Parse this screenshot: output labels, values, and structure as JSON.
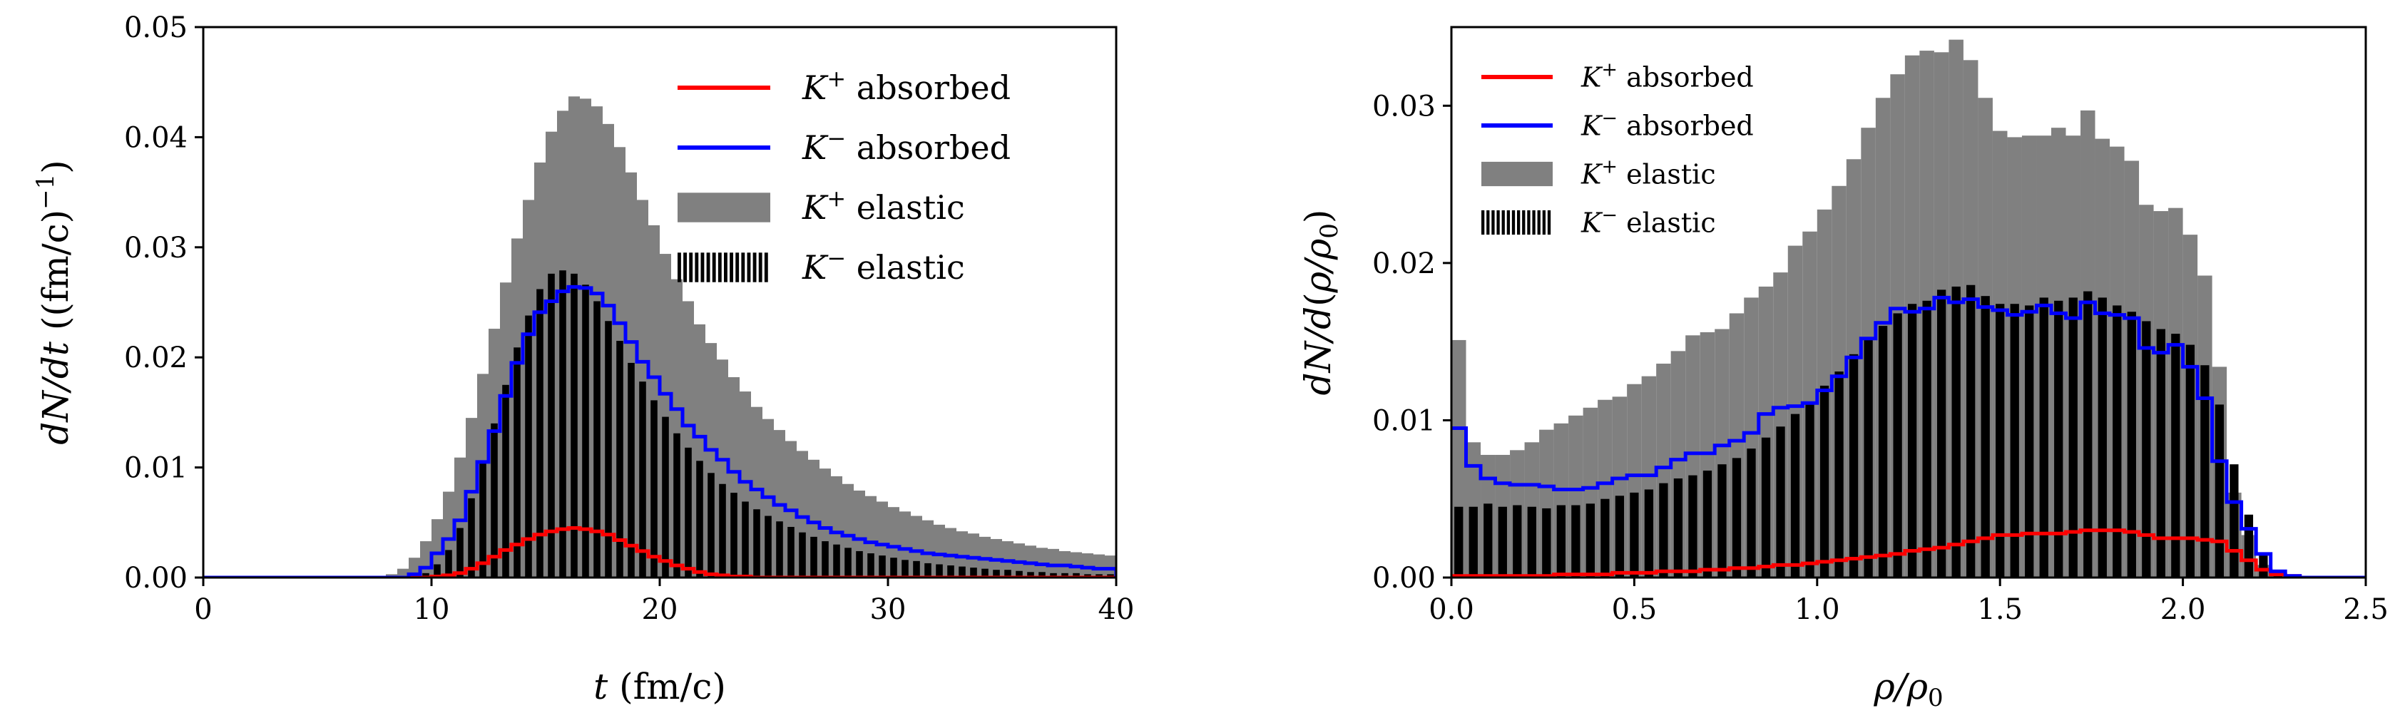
{
  "chart_data": [
    {
      "type": "histogram",
      "xlabel": "t (fm/c)",
      "ylabel": "dN/dt ((fm/c)^-1)",
      "xlim": [
        0,
        40
      ],
      "ylim": [
        0,
        0.05
      ],
      "xticks": [
        "0",
        "10",
        "20",
        "30",
        "40"
      ],
      "yticks": [
        "0.00",
        "0.01",
        "0.02",
        "0.03",
        "0.04",
        "0.05"
      ],
      "legend_position": "top-right",
      "bin_width": 0.5,
      "bin_start": 0,
      "series": [
        {
          "name": "K+ absorbed",
          "label": "K+ absorbed",
          "style": "step",
          "color": "#ff0000",
          "values": [
            0,
            0,
            0,
            0,
            0,
            0,
            0,
            0,
            0,
            0,
            0,
            0,
            0,
            0,
            0,
            0,
            0,
            0,
            0,
            0,
            0.0001,
            0.0002,
            0.0004,
            0.0008,
            0.0013,
            0.0019,
            0.0025,
            0.003,
            0.0035,
            0.0039,
            0.0042,
            0.0044,
            0.0045,
            0.0044,
            0.0042,
            0.0039,
            0.0034,
            0.0029,
            0.0024,
            0.0019,
            0.0015,
            0.0011,
            0.0008,
            0.0005,
            0.0003,
            0.0002,
            0.0001,
            0.0001
          ]
        },
        {
          "name": "K- absorbed",
          "label": "K− absorbed",
          "style": "step",
          "color": "#0000ff",
          "values": [
            0,
            0,
            0,
            0,
            0,
            0,
            0,
            0,
            0,
            0,
            0,
            0,
            0,
            0,
            0,
            0,
            0,
            0,
            0.0003,
            0.0009,
            0.0022,
            0.0035,
            0.0052,
            0.0078,
            0.0105,
            0.0133,
            0.0165,
            0.0195,
            0.0221,
            0.0241,
            0.0251,
            0.026,
            0.0264,
            0.0263,
            0.0258,
            0.0247,
            0.0231,
            0.0214,
            0.0196,
            0.0182,
            0.0167,
            0.0153,
            0.0138,
            0.0128,
            0.0116,
            0.0107,
            0.0096,
            0.0087,
            0.008,
            0.0073,
            0.0066,
            0.0061,
            0.0055,
            0.005,
            0.0045,
            0.0041,
            0.0038,
            0.0035,
            0.0032,
            0.003,
            0.0028,
            0.0026,
            0.0024,
            0.0022,
            0.0021,
            0.002,
            0.0019,
            0.0018,
            0.0017,
            0.0016,
            0.0015,
            0.0014,
            0.0013,
            0.0012,
            0.0011,
            0.0011,
            0.001,
            0.0009,
            0.0008,
            0.0008
          ]
        },
        {
          "name": "K+ elastic",
          "label": "K+ elastic",
          "style": "bar",
          "color": "#808080",
          "values": [
            0.0001,
            0.0001,
            0.0001,
            0.0001,
            0.0001,
            0.0001,
            0.0001,
            0.0001,
            0.0001,
            0.0001,
            0.0001,
            0.0001,
            0.0001,
            0.0001,
            0.0001,
            0.0001,
            0.0003,
            0.0008,
            0.0018,
            0.0033,
            0.0053,
            0.0078,
            0.0109,
            0.0145,
            0.0185,
            0.0226,
            0.0268,
            0.0308,
            0.0343,
            0.0377,
            0.0405,
            0.0424,
            0.0437,
            0.0435,
            0.0428,
            0.0412,
            0.0391,
            0.0368,
            0.0343,
            0.032,
            0.0294,
            0.0271,
            0.0251,
            0.023,
            0.0213,
            0.0198,
            0.0182,
            0.0169,
            0.0155,
            0.0144,
            0.0134,
            0.0124,
            0.0115,
            0.0107,
            0.0099,
            0.0092,
            0.0085,
            0.0079,
            0.0074,
            0.0069,
            0.0064,
            0.006,
            0.0056,
            0.0052,
            0.0048,
            0.0045,
            0.0042,
            0.004,
            0.0037,
            0.0035,
            0.0033,
            0.0031,
            0.0029,
            0.0027,
            0.0026,
            0.0024,
            0.0023,
            0.0022,
            0.0021,
            0.002
          ]
        },
        {
          "name": "K- elastic",
          "label": "K− elastic",
          "style": "bar",
          "color": "#000000",
          "values": [
            0,
            0,
            0,
            0,
            0,
            0,
            0,
            0,
            0,
            0,
            0,
            0,
            0,
            0,
            0,
            0,
            0,
            0,
            0,
            0.0004,
            0.0012,
            0.0025,
            0.0045,
            0.0072,
            0.0104,
            0.014,
            0.0175,
            0.0209,
            0.0238,
            0.0262,
            0.0276,
            0.0279,
            0.0276,
            0.0266,
            0.0251,
            0.0233,
            0.0215,
            0.0195,
            0.0178,
            0.0161,
            0.0146,
            0.0131,
            0.0118,
            0.0106,
            0.0095,
            0.0085,
            0.0077,
            0.0069,
            0.0062,
            0.0056,
            0.0051,
            0.0046,
            0.0041,
            0.0037,
            0.0033,
            0.003,
            0.0027,
            0.0024,
            0.0022,
            0.002,
            0.0018,
            0.0016,
            0.0015,
            0.0013,
            0.0012,
            0.0011,
            0.001,
            0.0009,
            0.0008,
            0.0007,
            0.0007,
            0.0006,
            0.0005,
            0.0005,
            0.0004,
            0.0004,
            0.0004,
            0.0003,
            0.0003,
            0.0003
          ]
        }
      ]
    },
    {
      "type": "histogram",
      "xlabel": "ρ/ρ0",
      "ylabel": "dN/d(ρ/ρ0)",
      "xlim": [
        0,
        2.5
      ],
      "ylim": [
        0,
        0.035
      ],
      "xticks": [
        "0.0",
        "0.5",
        "1.0",
        "1.5",
        "2.0",
        "2.5"
      ],
      "yticks": [
        "0.00",
        "0.01",
        "0.02",
        "0.03"
      ],
      "legend_position": "top-left",
      "bin_width": 0.04,
      "bin_start": 0,
      "series": [
        {
          "name": "K+ absorbed",
          "label": "K+ absorbed",
          "style": "step",
          "color": "#ff0000",
          "values": [
            0.0001,
            0.0001,
            0.0001,
            0.0001,
            0.0001,
            0.0001,
            0.0001,
            0.0002,
            0.0002,
            0.0002,
            0.0002,
            0.0003,
            0.0003,
            0.0003,
            0.0004,
            0.0004,
            0.0004,
            0.0005,
            0.0005,
            0.0006,
            0.0006,
            0.0007,
            0.0008,
            0.0008,
            0.0009,
            0.001,
            0.0011,
            0.0012,
            0.0013,
            0.0014,
            0.0015,
            0.0017,
            0.0018,
            0.0019,
            0.0021,
            0.0023,
            0.0025,
            0.0027,
            0.0027,
            0.0028,
            0.0028,
            0.0028,
            0.0029,
            0.003,
            0.003,
            0.003,
            0.0029,
            0.0027,
            0.0025,
            0.0025,
            0.0025,
            0.0024,
            0.0023,
            0.0017,
            0.0011,
            0.0005,
            0.0002,
            0.0001,
            0,
            0,
            0,
            0,
            0
          ]
        },
        {
          "name": "K- absorbed",
          "label": "K− absorbed",
          "style": "step",
          "color": "#0000ff",
          "values": [
            0.0095,
            0.0071,
            0.0063,
            0.006,
            0.0059,
            0.0059,
            0.0058,
            0.0056,
            0.0056,
            0.0057,
            0.006,
            0.0063,
            0.0065,
            0.0065,
            0.007,
            0.0075,
            0.0079,
            0.0079,
            0.0084,
            0.0087,
            0.0092,
            0.0104,
            0.0108,
            0.0109,
            0.0111,
            0.0119,
            0.0128,
            0.014,
            0.0152,
            0.0162,
            0.0171,
            0.0169,
            0.0171,
            0.0178,
            0.0175,
            0.0177,
            0.0172,
            0.017,
            0.0167,
            0.0169,
            0.0173,
            0.0168,
            0.0165,
            0.0175,
            0.0168,
            0.0167,
            0.0165,
            0.0146,
            0.0143,
            0.0148,
            0.0134,
            0.0114,
            0.0074,
            0.0048,
            0.0031,
            0.0015,
            0.0004,
            0.0001,
            0,
            0,
            0,
            0,
            0
          ]
        },
        {
          "name": "K+ elastic",
          "label": "K+ elastic",
          "style": "bar",
          "color": "#808080",
          "values": [
            0.0151,
            0.0086,
            0.0078,
            0.0078,
            0.0081,
            0.0086,
            0.0094,
            0.0098,
            0.0103,
            0.0108,
            0.0113,
            0.0115,
            0.0123,
            0.0128,
            0.0136,
            0.0144,
            0.0154,
            0.0156,
            0.0158,
            0.0168,
            0.0178,
            0.0185,
            0.0194,
            0.0211,
            0.022,
            0.0234,
            0.0249,
            0.0266,
            0.0286,
            0.0305,
            0.032,
            0.0332,
            0.0335,
            0.0334,
            0.0342,
            0.0329,
            0.0305,
            0.0284,
            0.028,
            0.0281,
            0.0281,
            0.0286,
            0.0281,
            0.0297,
            0.0279,
            0.0274,
            0.0265,
            0.0237,
            0.0233,
            0.0235,
            0.0218,
            0.0192,
            0.0134,
            0.0054,
            0.0027,
            0.0008,
            0.0002,
            0.0001,
            0,
            0,
            0,
            0,
            0
          ]
        },
        {
          "name": "K- elastic",
          "label": "K− elastic",
          "style": "bar",
          "color": "#000000",
          "values": [
            0.0045,
            0.0045,
            0.0047,
            0.0045,
            0.0046,
            0.0045,
            0.0044,
            0.0046,
            0.0046,
            0.0047,
            0.005,
            0.0052,
            0.0054,
            0.0056,
            0.006,
            0.0063,
            0.0065,
            0.0068,
            0.0072,
            0.0076,
            0.0082,
            0.0089,
            0.0096,
            0.0104,
            0.011,
            0.0122,
            0.0131,
            0.0142,
            0.0151,
            0.016,
            0.0168,
            0.0174,
            0.0176,
            0.0183,
            0.0185,
            0.0186,
            0.0179,
            0.0174,
            0.0174,
            0.0173,
            0.0178,
            0.0176,
            0.0178,
            0.0182,
            0.0178,
            0.0173,
            0.0169,
            0.0163,
            0.0158,
            0.0155,
            0.0148,
            0.0135,
            0.011,
            0.0072,
            0.004,
            0.0015,
            0.0004,
            0.0001,
            0,
            0,
            0,
            0,
            0
          ]
        }
      ]
    }
  ]
}
